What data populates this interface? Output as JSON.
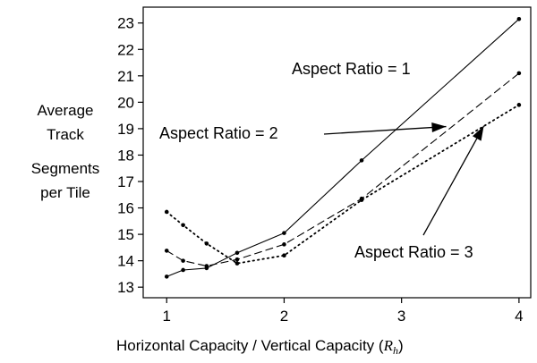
{
  "chart_data": {
    "type": "line",
    "title": "",
    "xlabel": "Horizontal Capacity / Vertical Capacity (",
    "xlabel_symbol": "R",
    "xlabel_subscript": "h",
    "xlabel_close": ")",
    "ylabel_lines": [
      "Average",
      "Track",
      "Segments",
      "per Tile"
    ],
    "xlim": [
      0.8,
      4.1
    ],
    "ylim": [
      12.6,
      23.6
    ],
    "x_ticks": [
      "1",
      "2",
      "3",
      "4"
    ],
    "y_ticks": [
      "13",
      "14",
      "15",
      "16",
      "17",
      "18",
      "19",
      "20",
      "21",
      "22",
      "23"
    ],
    "grid": false,
    "series": [
      {
        "name": "Aspect Ratio = 1",
        "style": "solid",
        "points": [
          [
            1.0,
            13.4
          ],
          [
            1.14,
            13.65
          ],
          [
            1.34,
            13.72
          ],
          [
            1.6,
            14.3
          ],
          [
            2.0,
            15.05
          ],
          [
            2.66,
            17.8
          ],
          [
            4.0,
            23.15
          ]
        ]
      },
      {
        "name": "Aspect Ratio = 2",
        "style": "dashed",
        "points": [
          [
            1.0,
            14.38
          ],
          [
            1.14,
            14.0
          ],
          [
            1.34,
            13.8
          ],
          [
            1.6,
            14.05
          ],
          [
            2.0,
            14.62
          ],
          [
            2.66,
            16.35
          ],
          [
            4.0,
            21.1
          ]
        ]
      },
      {
        "name": "Aspect Ratio = 3",
        "style": "dotted",
        "points": [
          [
            1.0,
            15.85
          ],
          [
            1.14,
            15.35
          ],
          [
            1.34,
            14.65
          ],
          [
            1.6,
            13.9
          ],
          [
            2.0,
            14.2
          ],
          [
            2.66,
            16.3
          ],
          [
            4.0,
            19.9
          ]
        ]
      }
    ],
    "annotations": [
      {
        "text": "Aspect Ratio = 1",
        "target_series": 0
      },
      {
        "text": "Aspect Ratio = 2",
        "target_series": 1,
        "arrow_to": [
          3.38,
          19.08
        ]
      },
      {
        "text": "Aspect Ratio = 3",
        "target_series": 2,
        "arrow_to": [
          3.7,
          19.1
        ]
      }
    ]
  }
}
